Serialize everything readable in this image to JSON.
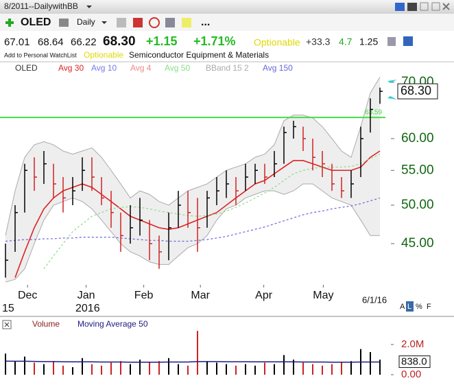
{
  "header": {
    "window_title": "8/2011--DailywithBB",
    "symbol": "OLED",
    "period": "Daily",
    "more": "...",
    "quote": [
      "67.01",
      "68.64",
      "66.22"
    ],
    "last": "68.30",
    "change": "+1.15",
    "change_pct": "+1.71%",
    "optionable": "Optionable",
    "stat1": "+33.3",
    "stat2": "4.7",
    "stat3": "1.25",
    "watchlist": "Add to Personal WatchList",
    "optionable2": "Optionable",
    "industry": "Semiconductor Equipment & Materials",
    "scale_buttons": [
      "A",
      "L",
      "%",
      "F"
    ]
  },
  "chart_data": {
    "type": "ohlc",
    "title": "OLED",
    "up_color": "#000000",
    "down_color": "#d02020",
    "high": [
      45,
      50,
      56,
      57,
      58,
      56,
      54,
      54,
      57,
      57,
      54,
      52,
      49,
      50,
      51,
      48,
      46,
      49,
      52,
      52,
      51,
      52,
      54,
      55,
      54,
      56,
      56,
      56,
      58,
      62,
      63,
      62,
      60,
      58,
      56,
      54,
      55,
      62,
      67,
      69
    ],
    "low": [
      41,
      44,
      49,
      52,
      53,
      51,
      49,
      50,
      52,
      52,
      50,
      47,
      44,
      45,
      46,
      43,
      42,
      43,
      47,
      47,
      44,
      47,
      50,
      51,
      50,
      52,
      53,
      53,
      54,
      56,
      60,
      58,
      55,
      54,
      52,
      51,
      51,
      54,
      61,
      66
    ],
    "close": [
      43,
      49,
      55,
      54,
      56,
      53,
      51,
      52,
      55,
      54,
      51,
      49,
      46,
      47,
      48,
      45,
      44,
      47,
      50,
      49,
      47,
      51,
      52,
      53,
      52,
      54,
      55,
      54,
      56,
      61,
      62,
      60,
      57,
      56,
      53,
      52,
      53,
      60,
      65,
      68.3
    ],
    "log_scale": true,
    "ylim": [
      40.2,
      72
    ],
    "yticks": [
      {
        "value": 45,
        "label": "45.00"
      },
      {
        "value": 50,
        "label": "50.00"
      },
      {
        "value": 55,
        "label": "55.00"
      },
      {
        "value": 60,
        "label": "60.00"
      },
      {
        "value": 70,
        "label": "70.00"
      }
    ],
    "xticks": [
      {
        "value": 2.3,
        "label": "Dec"
      },
      {
        "value": 8.4,
        "label": "Jan"
      },
      {
        "value": 14.4,
        "label": "Feb"
      },
      {
        "value": 20.3,
        "label": "Mar"
      },
      {
        "value": 26.9,
        "label": "Apr"
      },
      {
        "value": 33.1,
        "label": "May"
      }
    ],
    "year_labels": [
      "15",
      "2016"
    ],
    "date_label": "6/1/16",
    "last_price": {
      "value": 68.3,
      "label": "68.30"
    },
    "reference_line": {
      "value": 63.59,
      "label": "63.59",
      "color": "#44dd44"
    },
    "series": [
      {
        "name": "Avg 30",
        "color": "#dd2222",
        "dash": false,
        "values": [
          null,
          41,
          44,
          47,
          49.5,
          51,
          52,
          52.5,
          53,
          52.5,
          51.5,
          50.5,
          49.5,
          48.5,
          48,
          47.5,
          47,
          46.8,
          47,
          47.5,
          48,
          48.5,
          49,
          50,
          51,
          52,
          53,
          53.5,
          54.5,
          55.5,
          56.5,
          56.5,
          56,
          55.5,
          55,
          55,
          55,
          55.5,
          57,
          58
        ]
      },
      {
        "name": "Avg 10",
        "color": "#7777ee"
      },
      {
        "name": "Avg 4",
        "color": "#ee8888"
      },
      {
        "name": "Avg 50",
        "color": "#88dd88",
        "dash": true,
        "values": [
          null,
          null,
          null,
          null,
          42,
          43.5,
          45,
          46.5,
          47.5,
          48.5,
          49,
          49.5,
          49.7,
          49.8,
          49.7,
          49.5,
          49.2,
          49,
          48.8,
          48.6,
          48.5,
          48.6,
          48.8,
          49.2,
          49.7,
          50.3,
          51,
          51.7,
          52.5,
          53.5,
          54.5,
          55,
          55.3,
          55.5,
          55.5,
          55.5,
          55.6,
          56,
          56.8,
          57.5
        ]
      },
      {
        "name": "Avg 150",
        "color": "#6666dd",
        "dash": true,
        "values": [
          45.3,
          45.4,
          45.5,
          45.5,
          45.6,
          45.6,
          45.7,
          45.7,
          45.8,
          45.8,
          45.8,
          45.8,
          45.7,
          45.6,
          45.5,
          45.4,
          45.4,
          45.3,
          45.3,
          45.3,
          45.4,
          45.5,
          45.7,
          45.9,
          46.2,
          46.5,
          46.8,
          47.1,
          47.5,
          47.9,
          48.3,
          48.7,
          49,
          49.2,
          49.5,
          49.7,
          49.9,
          50.2,
          50.6,
          51
        ]
      }
    ],
    "band": {
      "name": "BBand 15 2",
      "color": "#aaaaaa",
      "upper": [
        46,
        52,
        57,
        59,
        59.5,
        59,
        58,
        57.5,
        58,
        58.5,
        57,
        55,
        53,
        51,
        52,
        51.5,
        50.5,
        50,
        51,
        52,
        52.5,
        53,
        54,
        55,
        55.5,
        56,
        57,
        57.5,
        59,
        63,
        64,
        64,
        63.5,
        62,
        60,
        58,
        57,
        62,
        68,
        71
      ],
      "lower": [
        40.5,
        40.8,
        42,
        45,
        48,
        50,
        50.5,
        51,
        50.5,
        49.5,
        48,
        46.5,
        45,
        44,
        43.5,
        42.8,
        42.5,
        42.5,
        43.5,
        44.5,
        45,
        46,
        48,
        49.5,
        50,
        51,
        51.5,
        52,
        52,
        51.5,
        52,
        53,
        53,
        52,
        51,
        50.5,
        50,
        48,
        46,
        46
      ]
    }
  },
  "volume_chart": {
    "type": "bar",
    "title": "Volume",
    "color": "#000000",
    "values": [
      1400000,
      900000,
      1200000,
      800000,
      700000,
      900000,
      600000,
      500000,
      1100000,
      700000,
      600000,
      800000,
      900000,
      700000,
      1000000,
      800000,
      900000,
      1100000,
      700000,
      600000,
      2900000,
      900000,
      800000,
      700000,
      600000,
      700000,
      600000,
      800000,
      700000,
      1300000,
      1000000,
      800000,
      700000,
      600000,
      700000,
      800000,
      900000,
      1700000,
      1500000,
      1000000
    ],
    "ylim": [
      0,
      3090000
    ],
    "yticks": [
      {
        "value": 2000000,
        "label": "2.0M"
      },
      {
        "value": 0,
        "label": "0.00"
      }
    ],
    "ma": {
      "name": "Moving Average 50",
      "color": "#1a1a80",
      "values": [
        900000,
        890000,
        890000,
        880000,
        870000,
        870000,
        860000,
        850000,
        850000,
        850000,
        840000,
        840000,
        840000,
        830000,
        830000,
        830000,
        830000,
        840000,
        840000,
        840000,
        870000,
        870000,
        870000,
        860000,
        860000,
        860000,
        850000,
        850000,
        850000,
        850000,
        850000,
        840000,
        840000,
        840000,
        830000,
        830000,
        830000,
        840000,
        840000,
        838000
      ],
      "last_value": 838000,
      "last_label": "838.0"
    }
  }
}
